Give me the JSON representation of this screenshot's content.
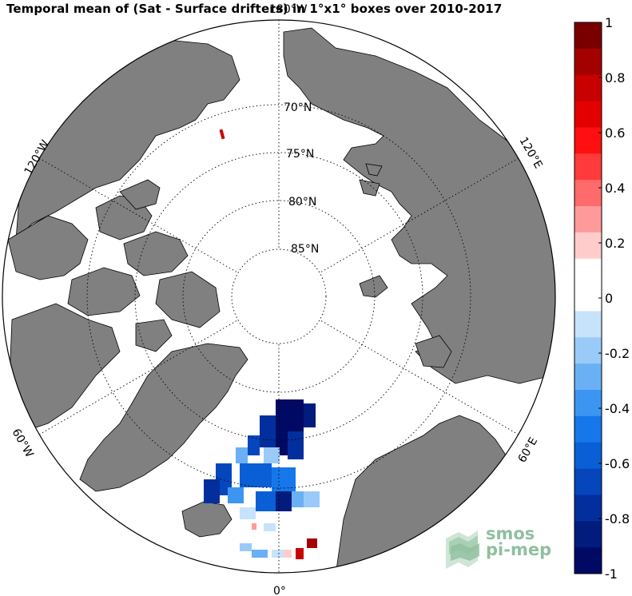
{
  "title": "Temporal mean of (Sat - Surface drifters) in 1°x1° boxes over 2010-2017",
  "map": {
    "projection": "north polar stereographic",
    "latitude_labels": [
      "70°N",
      "75°N",
      "80°N",
      "85°N"
    ],
    "longitude_labels": {
      "top": "180°W",
      "upper_left": "120°W",
      "upper_right": "120°E",
      "lower_left": "60°W",
      "lower_right": "60°E",
      "bottom": "0°"
    },
    "colors": {
      "land": "#808080",
      "ocean": "#ffffff",
      "outline": "#000000"
    }
  },
  "colorbar": {
    "min": -1,
    "max": 1,
    "tick_labels": [
      "1",
      "0.8",
      "0.6",
      "0.4",
      "0.2",
      "0",
      "-0.2",
      "-0.4",
      "-0.6",
      "-0.8",
      "-1"
    ],
    "colors_top_to_bottom": [
      "#7a0000",
      "#a30000",
      "#c80000",
      "#e30000",
      "#ff0f0f",
      "#ff3a3a",
      "#ff6a6a",
      "#ff9a9a",
      "#ffcccc",
      "#ffffff",
      "#ffffff",
      "#c7e2fb",
      "#9acbf8",
      "#6ab0f5",
      "#3d95f2",
      "#1677ea",
      "#0a5fd6",
      "#0546bd",
      "#022f9d",
      "#011c7d",
      "#000a64"
    ]
  },
  "logo": {
    "line1": "smos",
    "line2": "pi-mep",
    "color": "#8fbf9f"
  }
}
